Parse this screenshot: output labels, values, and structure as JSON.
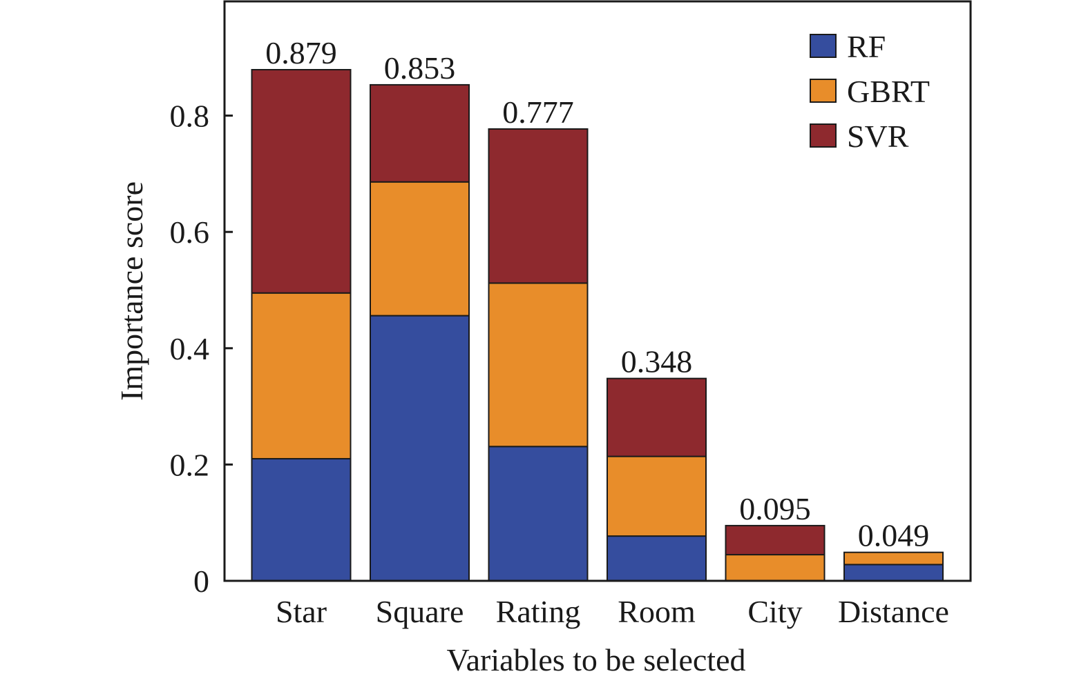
{
  "chart_data": {
    "type": "bar",
    "stacked": true,
    "xlabel": "Variables to be selected",
    "ylabel": "Importance score",
    "ylim": [
      0,
      1.0
    ],
    "yticks": [
      0,
      0.2,
      0.4,
      0.6,
      0.8
    ],
    "ytick_labels": [
      "0",
      "0.2",
      "0.4",
      "0.6",
      "0.8"
    ],
    "legend_position": "top-right",
    "categories": [
      "Star",
      "Square",
      "Rating",
      "Room",
      "City",
      "Distance"
    ],
    "series": [
      {
        "name": "RF",
        "color": "#354d9e",
        "values": [
          0.21,
          0.456,
          0.231,
          0.077,
          0.0,
          0.028
        ]
      },
      {
        "name": "GBRT",
        "color": "#e88d2a",
        "values": [
          0.285,
          0.23,
          0.281,
          0.137,
          0.045,
          0.021
        ]
      },
      {
        "name": "SVR",
        "color": "#8e292e",
        "values": [
          0.384,
          0.167,
          0.265,
          0.134,
          0.05,
          0.0
        ]
      }
    ],
    "totals": [
      0.879,
      0.853,
      0.777,
      0.348,
      0.095,
      0.049
    ],
    "total_labels": [
      "0.879",
      "0.853",
      "0.777",
      "0.348",
      "0.095",
      "0.049"
    ]
  }
}
